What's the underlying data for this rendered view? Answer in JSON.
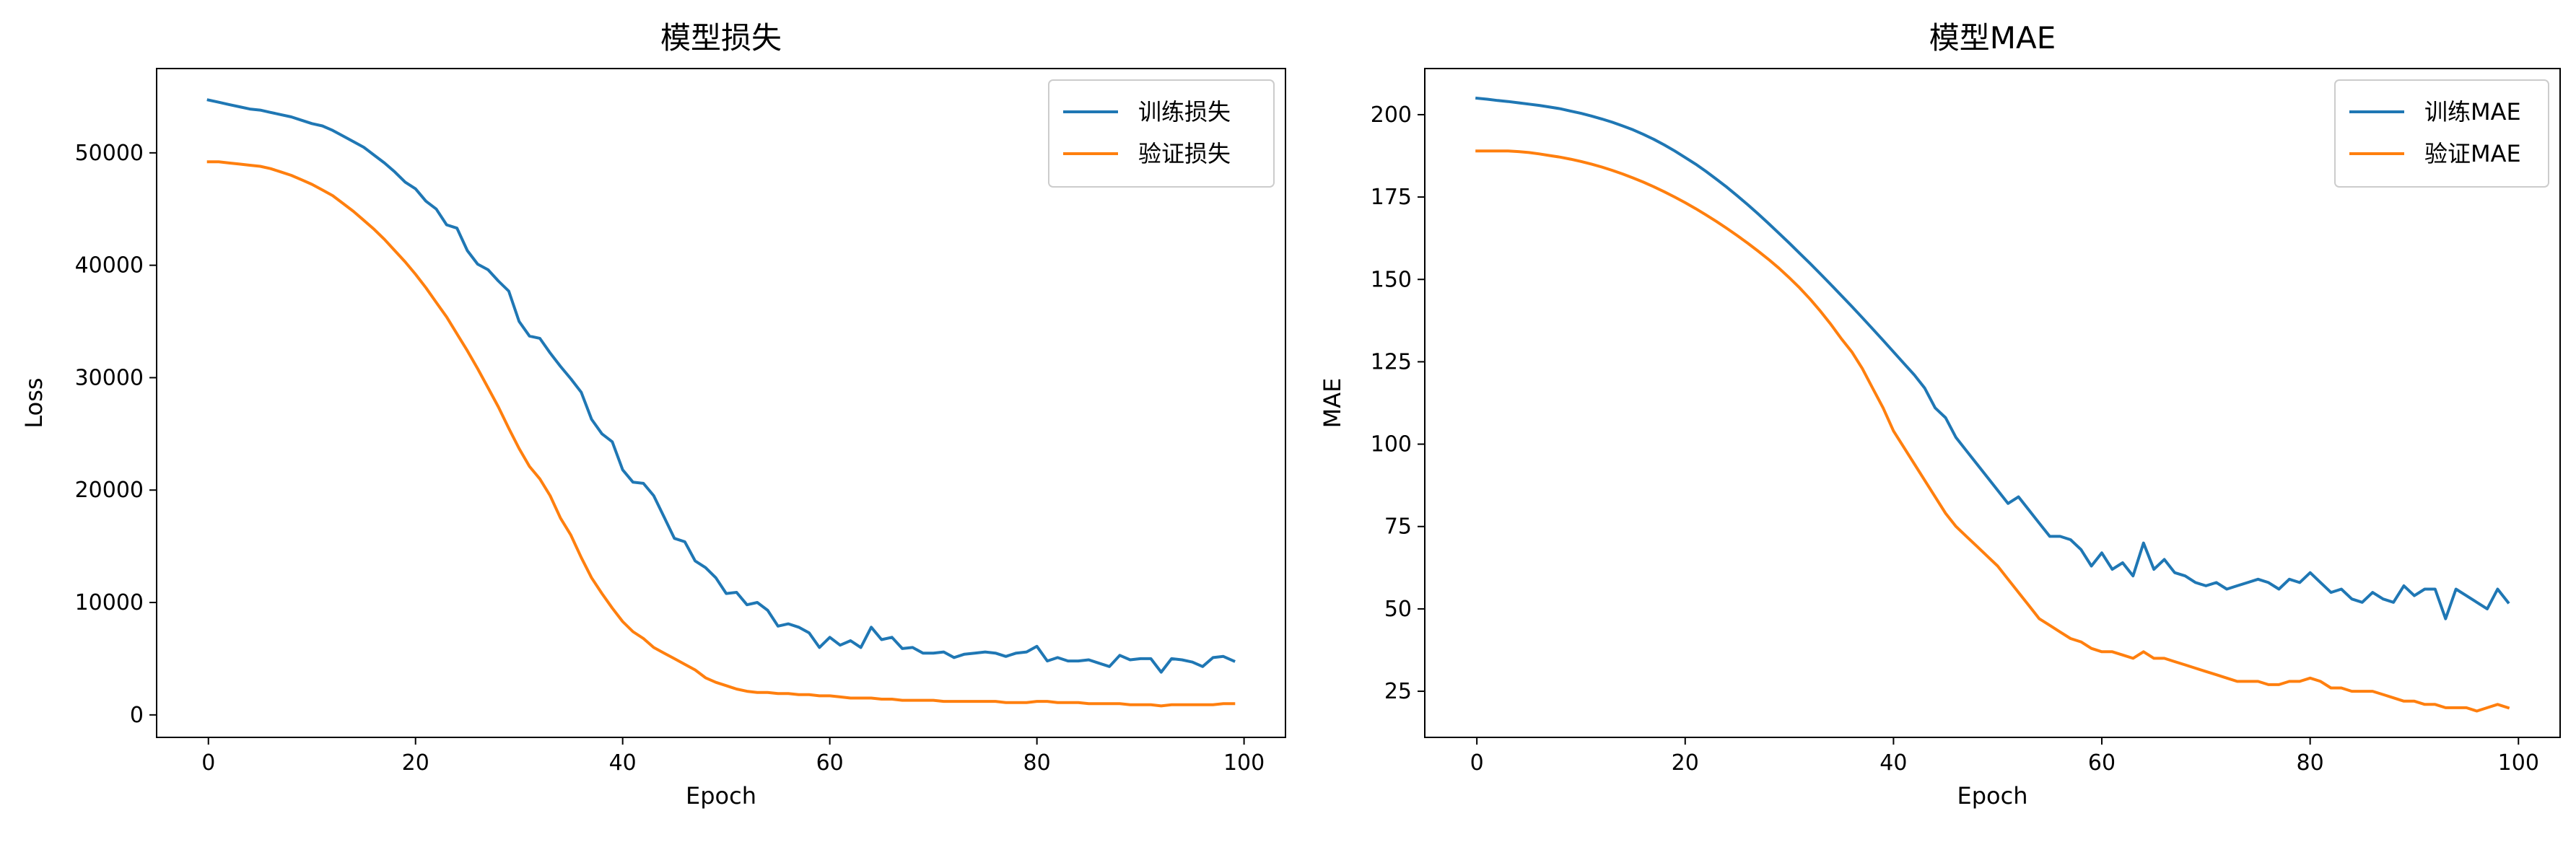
{
  "chart_data": [
    {
      "type": "line",
      "title": "模型损失",
      "xlabel": "Epoch",
      "ylabel": "Loss",
      "xlim": [
        -5,
        104
      ],
      "ylim": [
        -2000,
        57500
      ],
      "xticks": [
        0,
        20,
        40,
        60,
        80,
        100
      ],
      "yticks": [
        0,
        10000,
        20000,
        30000,
        40000,
        50000
      ],
      "grid": false,
      "legend_position": "top-right",
      "series": [
        {
          "name": "训练损失",
          "color": "#1f77b4",
          "values": [
            54700,
            54500,
            54300,
            54100,
            53900,
            53800,
            53600,
            53400,
            53200,
            52900,
            52600,
            52400,
            52000,
            51500,
            51000,
            50500,
            49800,
            49100,
            48300,
            47400,
            46800,
            45700,
            45000,
            43600,
            43300,
            41300,
            40100,
            39600,
            38600,
            37700,
            35000,
            33700,
            33500,
            32200,
            31000,
            29900,
            28700,
            26300,
            25000,
            24300,
            21800,
            20700,
            20600,
            19500,
            17600,
            15700,
            15400,
            13700,
            13100,
            12200,
            10800,
            10900,
            9800,
            10000,
            9300,
            7900,
            8100,
            7800,
            7300,
            6000,
            6900,
            6200,
            6600,
            6000,
            7800,
            6700,
            6900,
            5900,
            6000,
            5500,
            5500,
            5600,
            5100,
            5400,
            5500,
            5600,
            5500,
            5200,
            5500,
            5600,
            6100,
            4800,
            5100,
            4800,
            4800,
            4900,
            4600,
            4300,
            5300,
            4900,
            5000,
            5000,
            3800,
            5000,
            4900,
            4700,
            4300,
            5100,
            5200,
            4800
          ]
        },
        {
          "name": "验证损失",
          "color": "#ff7f0e",
          "values": [
            49200,
            49200,
            49100,
            49000,
            48900,
            48800,
            48600,
            48300,
            48000,
            47600,
            47200,
            46700,
            46200,
            45500,
            44800,
            44000,
            43200,
            42300,
            41300,
            40300,
            39200,
            38000,
            36700,
            35400,
            33900,
            32400,
            30800,
            29100,
            27400,
            25500,
            23700,
            22100,
            21000,
            19500,
            17500,
            16000,
            14000,
            12200,
            10800,
            9500,
            8300,
            7400,
            6800,
            6000,
            5500,
            5000,
            4500,
            4000,
            3300,
            2900,
            2600,
            2300,
            2100,
            2000,
            2000,
            1900,
            1900,
            1800,
            1800,
            1700,
            1700,
            1600,
            1500,
            1500,
            1500,
            1400,
            1400,
            1300,
            1300,
            1300,
            1300,
            1200,
            1200,
            1200,
            1200,
            1200,
            1200,
            1100,
            1100,
            1100,
            1200,
            1200,
            1100,
            1100,
            1100,
            1000,
            1000,
            1000,
            1000,
            900,
            900,
            900,
            800,
            900,
            900,
            900,
            900,
            900,
            1000,
            1000
          ]
        }
      ]
    },
    {
      "type": "line",
      "title": "模型MAE",
      "xlabel": "Epoch",
      "ylabel": "MAE",
      "xlim": [
        -5,
        104
      ],
      "ylim": [
        11,
        214
      ],
      "xticks": [
        0,
        20,
        40,
        60,
        80,
        100
      ],
      "yticks": [
        25,
        50,
        75,
        100,
        125,
        150,
        175,
        200
      ],
      "grid": false,
      "legend_position": "top-right",
      "series": [
        {
          "name": "训练MAE",
          "color": "#1f77b4",
          "values": [
            205,
            204.7,
            204.3,
            204,
            203.6,
            203.2,
            202.8,
            202.3,
            201.8,
            201.1,
            200.4,
            199.6,
            198.7,
            197.7,
            196.6,
            195.4,
            194,
            192.5,
            190.8,
            189,
            187,
            185,
            182.8,
            180.4,
            178,
            175.4,
            172.7,
            169.9,
            167,
            164,
            161,
            157.9,
            154.8,
            151.6,
            148.4,
            145.1,
            141.8,
            138.4,
            135,
            131.5,
            128,
            124.5,
            121,
            117,
            111,
            108,
            102,
            98,
            94,
            90,
            86,
            82,
            84,
            80,
            76,
            72,
            72,
            71,
            68,
            63,
            67,
            62,
            64,
            60,
            70,
            62,
            65,
            61,
            60,
            58,
            57,
            58,
            56,
            57,
            58,
            59,
            58,
            56,
            59,
            58,
            61,
            58,
            55,
            56,
            53,
            52,
            55,
            53,
            52,
            57,
            54,
            56,
            56,
            47,
            56,
            54,
            52,
            50,
            56,
            52
          ]
        },
        {
          "name": "验证MAE",
          "color": "#ff7f0e",
          "values": [
            189,
            189,
            189,
            189,
            188.8,
            188.5,
            188.1,
            187.6,
            187.1,
            186.5,
            185.8,
            185,
            184.1,
            183.1,
            182,
            180.8,
            179.5,
            178.1,
            176.6,
            175,
            173.3,
            171.5,
            169.6,
            167.6,
            165.5,
            163.3,
            161,
            158.6,
            156.1,
            153.4,
            150.5,
            147.4,
            144,
            140.3,
            136.3,
            132,
            128,
            123,
            117,
            111,
            104,
            99,
            94,
            89,
            84,
            79,
            75,
            72,
            69,
            66,
            63,
            59,
            55,
            51,
            47,
            45,
            43,
            41,
            40,
            38,
            37,
            37,
            36,
            35,
            37,
            35,
            35,
            34,
            33,
            32,
            31,
            30,
            29,
            28,
            28,
            28,
            27,
            27,
            28,
            28,
            29,
            28,
            26,
            26,
            25,
            25,
            25,
            24,
            23,
            22,
            22,
            21,
            21,
            20,
            20,
            20,
            19,
            20,
            21,
            20
          ]
        }
      ]
    }
  ]
}
